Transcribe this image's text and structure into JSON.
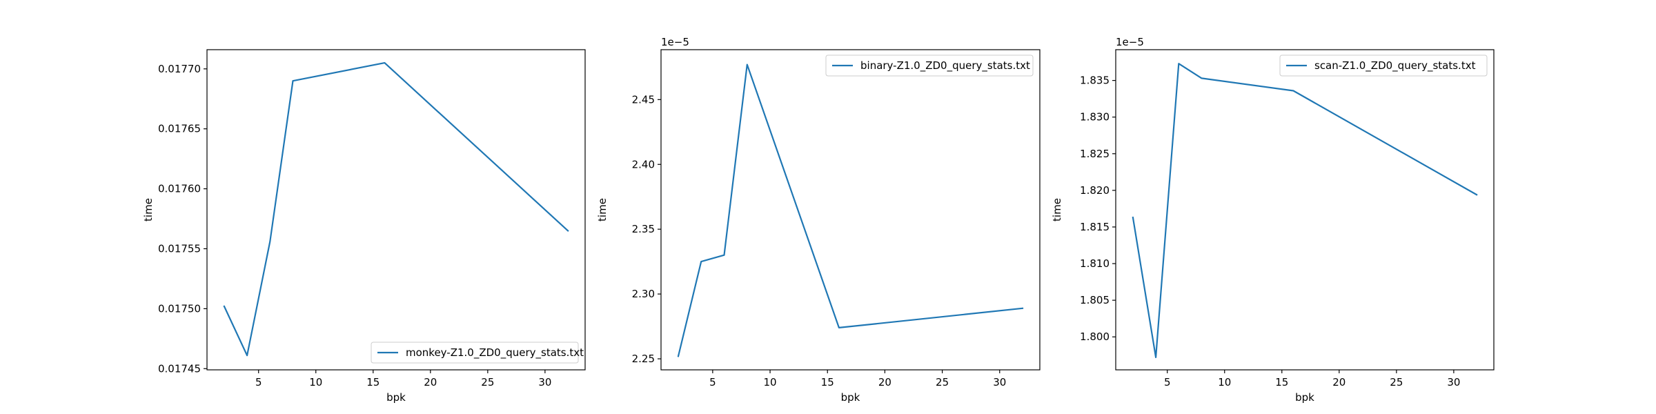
{
  "chart_data": [
    {
      "type": "line",
      "xlabel": "bpk",
      "ylabel": "time",
      "offset_text": "",
      "xlim": [
        0.5,
        33.5
      ],
      "ylim": [
        0.017449,
        0.017716
      ],
      "xticks": [
        5,
        10,
        15,
        20,
        25,
        30
      ],
      "xtick_labels": [
        "5",
        "10",
        "15",
        "20",
        "25",
        "30"
      ],
      "yticks": [
        0.01745,
        0.0175,
        0.01755,
        0.0176,
        0.01765,
        0.0177
      ],
      "ytick_labels": [
        "0.01745",
        "0.01750",
        "0.01755",
        "0.01760",
        "0.01765",
        "0.01770"
      ],
      "legend_loc": "lower right",
      "series": [
        {
          "name": "monkey-Z1.0_ZD0_query_stats.txt",
          "color": "#1f77b4",
          "x": [
            2,
            4,
            6,
            8,
            16,
            32
          ],
          "y": [
            0.017502,
            0.017461,
            0.017556,
            0.01769,
            0.017705,
            0.017565
          ]
        }
      ]
    },
    {
      "type": "line",
      "xlabel": "bpk",
      "ylabel": "time",
      "offset_text": "1e−5",
      "xlim": [
        0.5,
        33.5
      ],
      "ylim": [
        2.2415,
        2.4885
      ],
      "xticks": [
        5,
        10,
        15,
        20,
        25,
        30
      ],
      "xtick_labels": [
        "5",
        "10",
        "15",
        "20",
        "25",
        "30"
      ],
      "yticks": [
        2.25,
        2.3,
        2.35,
        2.4,
        2.45
      ],
      "ytick_labels": [
        "2.25",
        "2.30",
        "2.35",
        "2.40",
        "2.45"
      ],
      "legend_loc": "upper right",
      "series": [
        {
          "name": "binary-Z1.0_ZD0_query_stats.txt",
          "color": "#1f77b4",
          "x": [
            2,
            4,
            6,
            8,
            16,
            32
          ],
          "y": [
            2.252,
            2.325,
            2.33,
            2.477,
            2.274,
            2.289
          ]
        }
      ]
    },
    {
      "type": "line",
      "xlabel": "bpk",
      "ylabel": "time",
      "offset_text": "1e−5",
      "xlim": [
        0.5,
        33.5
      ],
      "ylim": [
        1.7955,
        1.8392
      ],
      "xticks": [
        5,
        10,
        15,
        20,
        25,
        30
      ],
      "xtick_labels": [
        "5",
        "10",
        "15",
        "20",
        "25",
        "30"
      ],
      "yticks": [
        1.8,
        1.805,
        1.81,
        1.815,
        1.82,
        1.825,
        1.83,
        1.835
      ],
      "ytick_labels": [
        "1.800",
        "1.805",
        "1.810",
        "1.815",
        "1.820",
        "1.825",
        "1.830",
        "1.835"
      ],
      "legend_loc": "upper right",
      "series": [
        {
          "name": "scan-Z1.0_ZD0_query_stats.txt",
          "color": "#1f77b4",
          "x": [
            2,
            4,
            6,
            8,
            16,
            32
          ],
          "y": [
            1.8163,
            1.7972,
            1.8373,
            1.8353,
            1.8336,
            1.8194
          ]
        }
      ]
    }
  ]
}
